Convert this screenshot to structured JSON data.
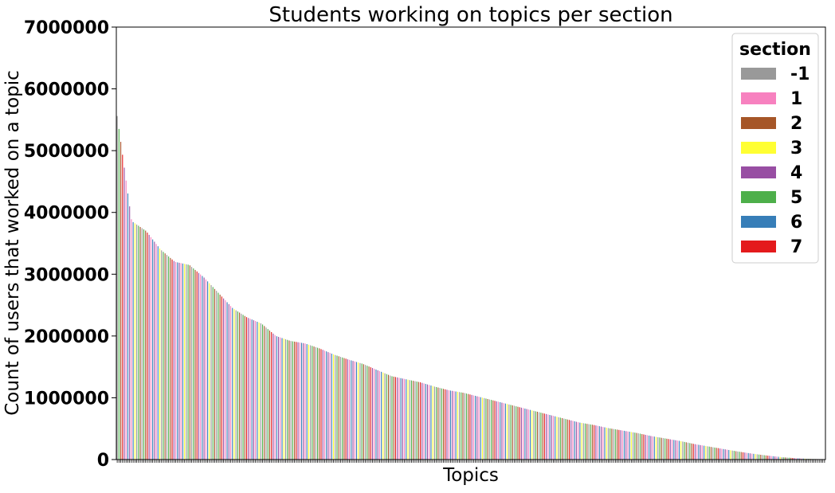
{
  "chart_data": {
    "type": "bar",
    "title": "Students working on topics per section",
    "xlabel": "Topics",
    "ylabel": "Count of users that worked on a topic",
    "ylim": [
      0,
      7000000
    ],
    "yticks": [
      "0",
      "1000000",
      "2000000",
      "3000000",
      "4000000",
      "5000000",
      "6000000",
      "7000000"
    ],
    "xtick_labels": false,
    "grid": false,
    "legend_position": "top-right",
    "legend_title": "section",
    "series": [
      {
        "name": "-1",
        "color": "#999999"
      },
      {
        "name": "1",
        "color": "#f781bf"
      },
      {
        "name": "2",
        "color": "#a65628"
      },
      {
        "name": "3",
        "color": "#ffff33"
      },
      {
        "name": "4",
        "color": "#984ea3"
      },
      {
        "name": "5",
        "color": "#4daf4a"
      },
      {
        "name": "6",
        "color": "#377eb8"
      },
      {
        "name": "7",
        "color": "#e41a1c"
      }
    ],
    "bars_sorted_descending": true,
    "profile_values": [
      5560000,
      3860000,
      3700000,
      3400000,
      3200000,
      3150000,
      2950000,
      2700000,
      2450000,
      2300000,
      2200000,
      2000000,
      1920000,
      1880000,
      1800000,
      1700000,
      1620000,
      1550000,
      1450000,
      1350000,
      1300000,
      1250000,
      1180000,
      1120000,
      1080000,
      1020000,
      960000,
      900000,
      840000,
      780000,
      720000,
      660000,
      600000,
      560000,
      510000,
      470000,
      430000,
      380000,
      340000,
      300000,
      250000,
      210000,
      170000,
      130000,
      95000,
      65000,
      40000,
      22000,
      10000,
      4000
    ],
    "category_count": 400
  }
}
